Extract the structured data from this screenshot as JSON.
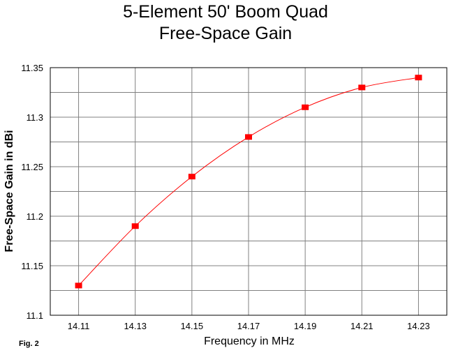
{
  "chart_data": {
    "type": "line",
    "title": [
      "5-Element 50' Boom Quad",
      "Free-Space Gain"
    ],
    "xlabel": "Frequency in MHz",
    "ylabel": "Free-Space Gain in dBi",
    "x": [
      14.11,
      14.13,
      14.15,
      14.17,
      14.19,
      14.21,
      14.23
    ],
    "x_ticks": [
      "14.11",
      "14.13",
      "14.15",
      "14.17",
      "14.19",
      "14.21",
      "14.23"
    ],
    "series": [
      {
        "values": [
          11.13,
          11.19,
          11.24,
          11.28,
          11.31,
          11.33,
          11.34
        ],
        "color": "#ff0000",
        "marker": "square"
      }
    ],
    "ylim": [
      11.1,
      11.35
    ],
    "y_ticks": [
      "11.1",
      "11.15",
      "11.2",
      "11.25",
      "11.3",
      "11.35"
    ],
    "grid": true,
    "line_color": "#ff0000",
    "grid_color": "#808080",
    "legend": "none"
  },
  "figure_label": "Fig. 2"
}
